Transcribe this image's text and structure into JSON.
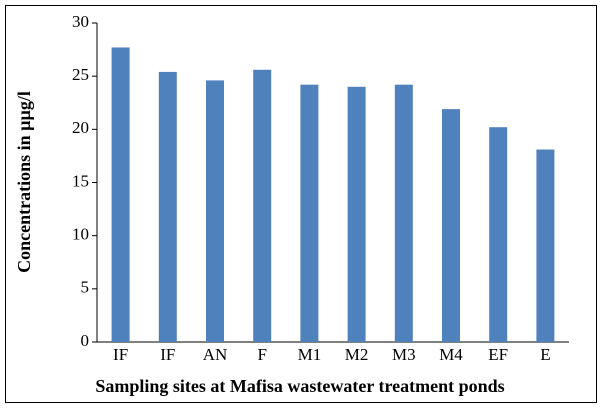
{
  "chart_data": {
    "type": "bar",
    "x_label": "Sampling sites at Mafisa wastewater treatment ponds",
    "y_label": "Concentrations in µµg/l",
    "categories": [
      "IF",
      "IF",
      "AN",
      "F",
      "M1",
      "M2",
      "M3",
      "M4",
      "EF",
      "E"
    ],
    "values": [
      27.7,
      25.4,
      24.6,
      25.6,
      24.2,
      24.0,
      24.2,
      21.9,
      20.2,
      18.1
    ],
    "color": "#4f81bd",
    "ylim": [
      0,
      30
    ],
    "yticks": [
      0,
      5,
      10,
      15,
      20,
      25,
      30
    ],
    "grid": false
  }
}
